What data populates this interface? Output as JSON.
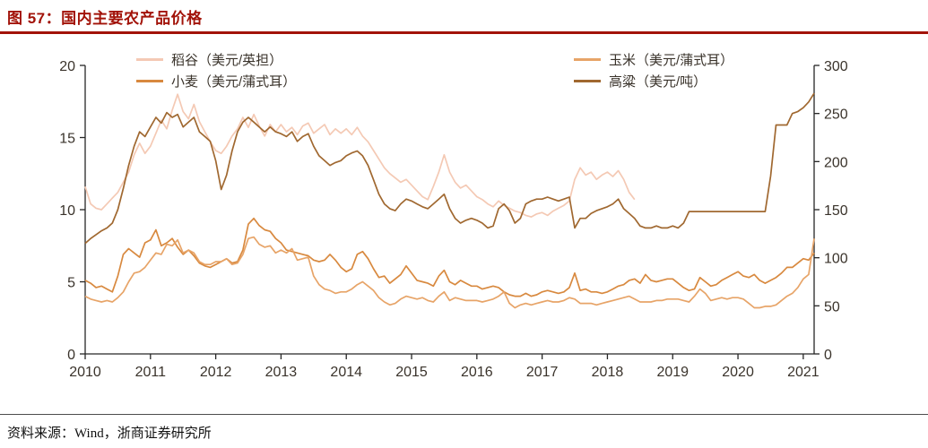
{
  "figure": {
    "title": "图 57：国内主要农产品价格",
    "source": "资料来源：Wind，浙商证券研究所"
  },
  "colors": {
    "accent": "#A21309",
    "axis_text": "#3A332B",
    "axis_line": "#262626"
  },
  "chart_data": {
    "type": "line",
    "title": "国内主要农产品价格",
    "grid": false,
    "legend_position": "top",
    "x_unit": "year",
    "x_start": 2010.0,
    "x_step": 0.0833333,
    "x_ticks": [
      2010,
      2011,
      2012,
      2013,
      2014,
      2015,
      2016,
      2017,
      2018,
      2019,
      2020,
      2021
    ],
    "left_axis": {
      "min": 0,
      "max": 20,
      "ticks": [
        0,
        5,
        10,
        15,
        20
      ]
    },
    "right_axis": {
      "min": 0,
      "max": 300,
      "ticks": [
        0,
        50,
        100,
        150,
        200,
        250,
        300
      ]
    },
    "series": [
      {
        "name": "稻谷（美元/英担）",
        "axis": "left",
        "color": "#F4C9B4",
        "values": [
          11.6,
          10.4,
          10.1,
          10.0,
          10.4,
          10.8,
          11.2,
          11.9,
          12.6,
          13.8,
          14.6,
          13.9,
          14.4,
          15.3,
          16.2,
          15.6,
          16.9,
          18.0,
          16.8,
          16.3,
          17.3,
          16.1,
          15.4,
          14.7,
          14.1,
          13.9,
          14.4,
          15.1,
          15.6,
          16.4,
          15.7,
          16.6,
          15.8,
          15.1,
          15.9,
          15.4,
          15.9,
          15.4,
          15.7,
          15.2,
          15.8,
          16.0,
          15.3,
          15.6,
          15.9,
          15.2,
          15.6,
          15.3,
          15.6,
          15.2,
          15.7,
          15.1,
          14.7,
          14.1,
          13.5,
          12.9,
          12.5,
          12.2,
          11.9,
          12.1,
          11.7,
          11.3,
          10.9,
          10.7,
          11.6,
          12.6,
          13.8,
          12.6,
          11.9,
          11.5,
          11.7,
          11.3,
          10.9,
          10.7,
          10.4,
          10.2,
          10.6,
          10.3,
          10.1,
          9.9,
          9.8,
          9.6,
          9.5,
          9.7,
          9.8,
          9.6,
          9.9,
          10.1,
          10.3,
          10.6,
          12.1,
          12.9,
          12.4,
          12.6,
          12.1,
          12.4,
          12.6,
          12.3,
          12.7,
          12.1,
          11.2,
          10.7
        ]
      },
      {
        "name": "小麦（美元/蒲式耳）",
        "axis": "left",
        "color": "#D8893F",
        "values": [
          5.1,
          4.9,
          4.6,
          4.7,
          4.5,
          4.3,
          5.4,
          6.9,
          7.3,
          7.0,
          6.7,
          7.7,
          7.9,
          8.6,
          7.5,
          7.7,
          8.0,
          7.4,
          6.9,
          7.2,
          6.8,
          6.3,
          6.1,
          6.0,
          6.2,
          6.4,
          6.6,
          6.3,
          6.4,
          7.2,
          9.0,
          9.4,
          8.9,
          8.6,
          8.5,
          8.0,
          7.7,
          7.2,
          7.1,
          7.0,
          6.9,
          6.8,
          6.5,
          6.4,
          6.5,
          6.9,
          6.5,
          6.0,
          5.7,
          5.9,
          6.9,
          7.1,
          6.6,
          5.9,
          5.3,
          5.4,
          4.9,
          5.2,
          5.5,
          6.1,
          5.6,
          5.1,
          5.0,
          4.9,
          4.7,
          5.4,
          5.8,
          5.0,
          4.8,
          5.1,
          4.9,
          4.7,
          4.7,
          4.5,
          4.6,
          4.7,
          4.6,
          4.3,
          4.1,
          4.0,
          4.0,
          4.2,
          4.0,
          4.1,
          4.3,
          4.4,
          4.3,
          4.2,
          4.3,
          4.6,
          5.6,
          4.4,
          4.5,
          4.3,
          4.3,
          4.2,
          4.3,
          4.5,
          4.7,
          4.8,
          5.1,
          5.2,
          4.9,
          5.5,
          5.1,
          5.0,
          5.1,
          5.2,
          5.2,
          4.9,
          4.6,
          4.4,
          4.5,
          5.3,
          5.0,
          4.7,
          4.8,
          5.1,
          5.3,
          5.5,
          5.7,
          5.4,
          5.3,
          5.5,
          5.1,
          4.9,
          5.1,
          5.3,
          5.6,
          6.0,
          6.0,
          6.3,
          6.6,
          6.5,
          7.0
        ]
      },
      {
        "name": "玉米（美元/蒲式耳）",
        "axis": "left",
        "color": "#E7A468",
        "values": [
          4.0,
          3.8,
          3.7,
          3.6,
          3.7,
          3.6,
          3.9,
          4.3,
          5.0,
          5.6,
          5.7,
          6.0,
          6.5,
          7.0,
          6.9,
          7.6,
          7.5,
          7.9,
          7.0,
          7.2,
          7.0,
          6.4,
          6.2,
          6.2,
          6.4,
          6.4,
          6.6,
          6.2,
          6.3,
          6.9,
          8.0,
          8.1,
          7.6,
          7.4,
          7.5,
          7.0,
          7.2,
          7.0,
          7.3,
          6.5,
          6.6,
          6.7,
          5.4,
          4.8,
          4.5,
          4.4,
          4.2,
          4.3,
          4.3,
          4.5,
          4.8,
          5.0,
          4.7,
          4.4,
          3.9,
          3.6,
          3.4,
          3.5,
          3.8,
          4.0,
          3.9,
          3.8,
          3.9,
          3.7,
          3.6,
          4.0,
          4.3,
          3.7,
          3.9,
          3.8,
          3.7,
          3.7,
          3.7,
          3.6,
          3.7,
          3.8,
          4.0,
          4.3,
          3.5,
          3.2,
          3.4,
          3.5,
          3.4,
          3.5,
          3.6,
          3.7,
          3.6,
          3.6,
          3.7,
          3.9,
          3.8,
          3.5,
          3.5,
          3.5,
          3.4,
          3.5,
          3.6,
          3.7,
          3.8,
          3.9,
          4.0,
          3.8,
          3.6,
          3.6,
          3.6,
          3.7,
          3.7,
          3.8,
          3.8,
          3.8,
          3.7,
          3.6,
          4.0,
          4.5,
          4.2,
          3.7,
          3.8,
          3.9,
          3.8,
          3.9,
          3.9,
          3.8,
          3.5,
          3.2,
          3.2,
          3.3,
          3.3,
          3.4,
          3.7,
          4.0,
          4.2,
          4.6,
          5.2,
          5.5,
          8.0
        ]
      },
      {
        "name": "高粱（美元/吨）",
        "axis": "right",
        "color": "#A06830",
        "values": [
          115,
          120,
          124,
          128,
          131,
          136,
          150,
          172,
          196,
          216,
          231,
          226,
          236,
          246,
          240,
          251,
          246,
          249,
          236,
          241,
          246,
          231,
          226,
          221,
          201,
          171,
          186,
          211,
          231,
          241,
          246,
          241,
          236,
          231,
          236,
          231,
          229,
          226,
          231,
          221,
          226,
          229,
          216,
          206,
          201,
          196,
          199,
          201,
          206,
          209,
          211,
          206,
          196,
          181,
          166,
          156,
          151,
          149,
          156,
          161,
          159,
          156,
          153,
          151,
          156,
          161,
          166,
          151,
          141,
          136,
          139,
          141,
          139,
          136,
          131,
          133,
          151,
          156,
          149,
          136,
          141,
          156,
          159,
          161,
          161,
          163,
          161,
          159,
          161,
          163,
          131,
          141,
          141,
          146,
          149,
          151,
          153,
          156,
          161,
          151,
          146,
          141,
          133,
          131,
          131,
          133,
          131,
          131,
          133,
          131,
          136,
          148,
          148,
          148,
          148,
          148,
          148,
          148,
          148,
          148,
          148,
          148,
          148,
          148,
          148,
          148,
          185,
          238,
          238,
          238,
          250,
          252,
          256,
          262,
          271
        ]
      }
    ]
  }
}
